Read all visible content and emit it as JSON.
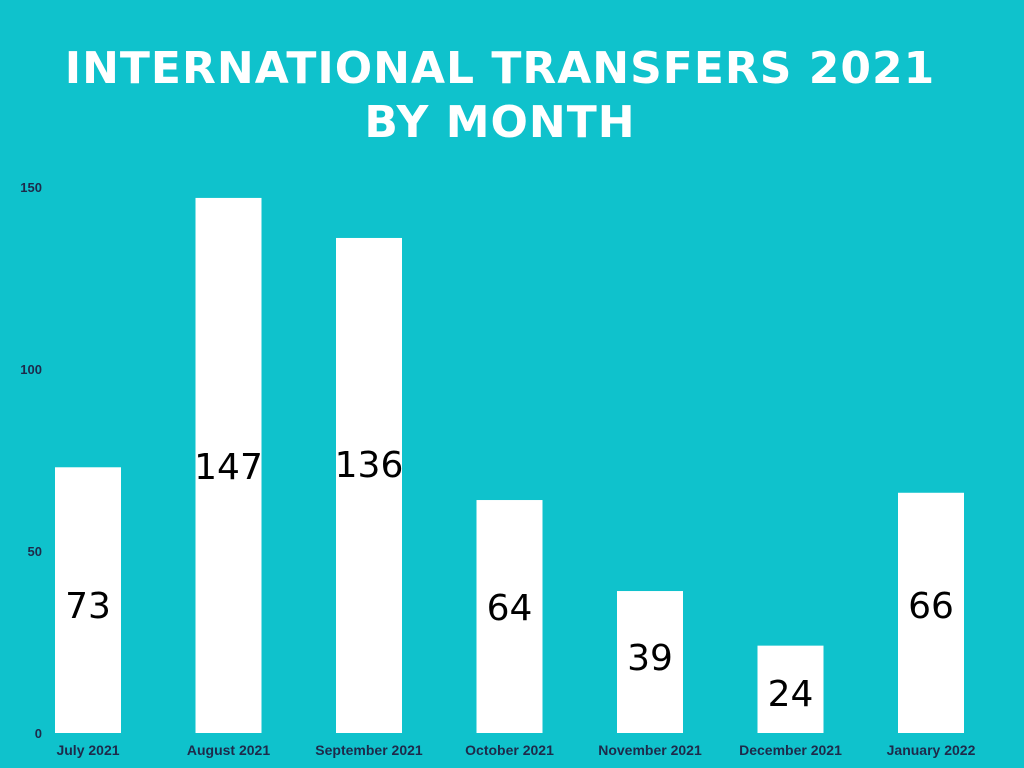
{
  "chart_data": {
    "type": "bar",
    "title_line1": "INTERNATIONAL TRANSFERS 2021",
    "title_line2": "BY MONTH",
    "xlabel": "",
    "ylabel": "",
    "ylim": [
      0,
      150
    ],
    "yticks": [
      0,
      50,
      100,
      150
    ],
    "grid": false,
    "categories": [
      "July 2021",
      "August 2021",
      "September 2021",
      "October 2021",
      "November 2021",
      "December 2021",
      "January 2022"
    ],
    "values": [
      73,
      147,
      136,
      64,
      39,
      24,
      66
    ],
    "bar_color": "#ffffff",
    "background_color": "#0fc2cc"
  }
}
